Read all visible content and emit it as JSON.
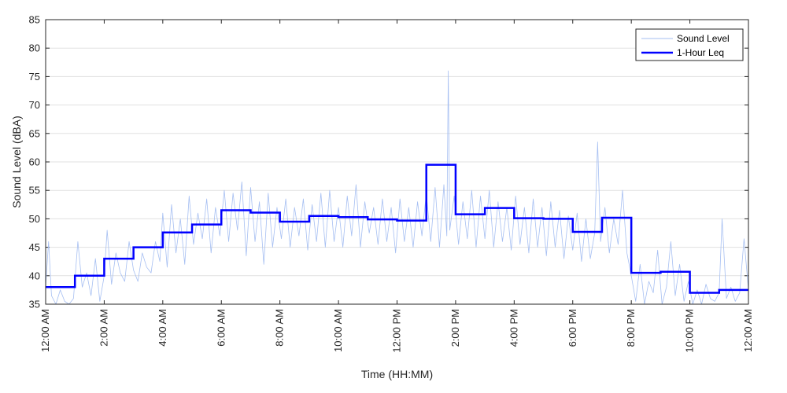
{
  "chart_data": {
    "type": "line",
    "xlabel": "Time (HH:MM)",
    "ylabel": "Sound Level (dBA)",
    "xlim": [
      0,
      24
    ],
    "ylim": [
      35,
      85
    ],
    "grid": "horizontal",
    "legend_position": "top-right",
    "y_ticks": [
      35,
      40,
      45,
      50,
      55,
      60,
      65,
      70,
      75,
      80,
      85
    ],
    "x_ticks": [
      {
        "hour": 0,
        "label": "12:00 AM"
      },
      {
        "hour": 2,
        "label": "2:00 AM"
      },
      {
        "hour": 4,
        "label": "4:00 AM"
      },
      {
        "hour": 6,
        "label": "6:00 AM"
      },
      {
        "hour": 8,
        "label": "8:00 AM"
      },
      {
        "hour": 10,
        "label": "10:00 AM"
      },
      {
        "hour": 12,
        "label": "12:00 PM"
      },
      {
        "hour": 14,
        "label": "2:00 PM"
      },
      {
        "hour": 16,
        "label": "4:00 PM"
      },
      {
        "hour": 18,
        "label": "6:00 PM"
      },
      {
        "hour": 20,
        "label": "8:00 PM"
      },
      {
        "hour": 22,
        "label": "10:00 PM"
      },
      {
        "hour": 24,
        "label": "12:00 AM"
      }
    ],
    "series": [
      {
        "name": "Sound Level",
        "color": "#a6bff2",
        "style": "thin-line",
        "points": [
          [
            0.0,
            38.0
          ],
          [
            0.1,
            46.0
          ],
          [
            0.2,
            36.5
          ],
          [
            0.35,
            35.0
          ],
          [
            0.5,
            37.5
          ],
          [
            0.65,
            35.5
          ],
          [
            0.8,
            35.0
          ],
          [
            0.95,
            36.0
          ],
          [
            1.1,
            46.0
          ],
          [
            1.25,
            38.0
          ],
          [
            1.4,
            40.5
          ],
          [
            1.55,
            36.5
          ],
          [
            1.7,
            43.0
          ],
          [
            1.85,
            35.5
          ],
          [
            2.0,
            40.0
          ],
          [
            2.1,
            48.0
          ],
          [
            2.25,
            38.5
          ],
          [
            2.4,
            44.0
          ],
          [
            2.55,
            40.5
          ],
          [
            2.7,
            39.0
          ],
          [
            2.85,
            46.0
          ],
          [
            3.0,
            41.0
          ],
          [
            3.15,
            39.0
          ],
          [
            3.3,
            44.0
          ],
          [
            3.45,
            41.5
          ],
          [
            3.6,
            40.5
          ],
          [
            3.75,
            46.0
          ],
          [
            3.9,
            42.5
          ],
          [
            4.0,
            51.0
          ],
          [
            4.15,
            41.5
          ],
          [
            4.3,
            52.5
          ],
          [
            4.45,
            44.0
          ],
          [
            4.6,
            50.0
          ],
          [
            4.75,
            42.0
          ],
          [
            4.9,
            54.0
          ],
          [
            5.05,
            45.5
          ],
          [
            5.2,
            51.0
          ],
          [
            5.35,
            46.5
          ],
          [
            5.5,
            53.5
          ],
          [
            5.65,
            44.0
          ],
          [
            5.8,
            52.0
          ],
          [
            5.95,
            47.0
          ],
          [
            6.1,
            55.0
          ],
          [
            6.25,
            46.0
          ],
          [
            6.4,
            54.5
          ],
          [
            6.55,
            48.0
          ],
          [
            6.7,
            56.5
          ],
          [
            6.85,
            43.5
          ],
          [
            7.0,
            55.5
          ],
          [
            7.15,
            46.0
          ],
          [
            7.3,
            53.0
          ],
          [
            7.45,
            42.0
          ],
          [
            7.6,
            54.5
          ],
          [
            7.75,
            45.0
          ],
          [
            7.9,
            52.0
          ],
          [
            8.05,
            46.5
          ],
          [
            8.2,
            53.5
          ],
          [
            8.35,
            45.0
          ],
          [
            8.5,
            52.0
          ],
          [
            8.65,
            47.0
          ],
          [
            8.8,
            53.5
          ],
          [
            8.95,
            44.5
          ],
          [
            9.1,
            52.5
          ],
          [
            9.25,
            46.0
          ],
          [
            9.4,
            54.5
          ],
          [
            9.55,
            45.0
          ],
          [
            9.7,
            55.0
          ],
          [
            9.85,
            46.0
          ],
          [
            10.0,
            52.0
          ],
          [
            10.15,
            45.0
          ],
          [
            10.3,
            54.0
          ],
          [
            10.45,
            47.0
          ],
          [
            10.6,
            56.0
          ],
          [
            10.75,
            45.0
          ],
          [
            10.9,
            53.0
          ],
          [
            11.05,
            47.5
          ],
          [
            11.2,
            52.0
          ],
          [
            11.35,
            45.5
          ],
          [
            11.5,
            53.5
          ],
          [
            11.65,
            46.0
          ],
          [
            11.8,
            52.0
          ],
          [
            11.95,
            44.0
          ],
          [
            12.1,
            53.5
          ],
          [
            12.25,
            46.0
          ],
          [
            12.4,
            52.0
          ],
          [
            12.55,
            45.0
          ],
          [
            12.7,
            53.0
          ],
          [
            12.85,
            47.0
          ],
          [
            13.0,
            54.5
          ],
          [
            13.15,
            46.0
          ],
          [
            13.3,
            55.5
          ],
          [
            13.45,
            45.0
          ],
          [
            13.6,
            56.0
          ],
          [
            13.7,
            47.0
          ],
          [
            13.75,
            76.0
          ],
          [
            13.8,
            48.0
          ],
          [
            13.95,
            54.0
          ],
          [
            14.1,
            45.5
          ],
          [
            14.25,
            53.0
          ],
          [
            14.4,
            46.5
          ],
          [
            14.55,
            55.0
          ],
          [
            14.7,
            45.0
          ],
          [
            14.85,
            54.0
          ],
          [
            15.0,
            46.5
          ],
          [
            15.15,
            55.0
          ],
          [
            15.3,
            45.0
          ],
          [
            15.45,
            53.0
          ],
          [
            15.6,
            46.0
          ],
          [
            15.75,
            52.0
          ],
          [
            15.9,
            44.5
          ],
          [
            16.05,
            54.0
          ],
          [
            16.2,
            45.5
          ],
          [
            16.35,
            52.0
          ],
          [
            16.5,
            44.0
          ],
          [
            16.65,
            53.5
          ],
          [
            16.8,
            45.0
          ],
          [
            16.95,
            52.0
          ],
          [
            17.1,
            43.5
          ],
          [
            17.25,
            53.0
          ],
          [
            17.4,
            45.0
          ],
          [
            17.55,
            51.5
          ],
          [
            17.7,
            43.0
          ],
          [
            17.85,
            50.5
          ],
          [
            18.0,
            44.5
          ],
          [
            18.15,
            51.0
          ],
          [
            18.3,
            42.5
          ],
          [
            18.45,
            50.0
          ],
          [
            18.6,
            43.0
          ],
          [
            18.75,
            47.5
          ],
          [
            18.85,
            63.5
          ],
          [
            18.95,
            46.0
          ],
          [
            19.1,
            52.0
          ],
          [
            19.25,
            44.0
          ],
          [
            19.4,
            50.0
          ],
          [
            19.55,
            45.5
          ],
          [
            19.7,
            55.0
          ],
          [
            19.85,
            44.0
          ],
          [
            20.0,
            40.0
          ],
          [
            20.15,
            35.5
          ],
          [
            20.3,
            42.0
          ],
          [
            20.45,
            35.0
          ],
          [
            20.6,
            39.0
          ],
          [
            20.75,
            37.0
          ],
          [
            20.9,
            44.5
          ],
          [
            21.05,
            35.0
          ],
          [
            21.2,
            38.0
          ],
          [
            21.35,
            46.0
          ],
          [
            21.5,
            36.5
          ],
          [
            21.65,
            42.0
          ],
          [
            21.8,
            35.5
          ],
          [
            21.95,
            39.0
          ],
          [
            22.1,
            35.0
          ],
          [
            22.25,
            37.5
          ],
          [
            22.4,
            35.0
          ],
          [
            22.55,
            38.5
          ],
          [
            22.7,
            36.0
          ],
          [
            22.85,
            35.5
          ],
          [
            23.0,
            37.0
          ],
          [
            23.1,
            50.0
          ],
          [
            23.25,
            36.0
          ],
          [
            23.4,
            38.0
          ],
          [
            23.55,
            35.5
          ],
          [
            23.7,
            37.0
          ],
          [
            23.85,
            46.5
          ],
          [
            24.0,
            37.5
          ]
        ]
      },
      {
        "name": "1-Hour Leq",
        "color": "#0000ff",
        "style": "thick-step",
        "hourly_values": [
          38.0,
          40.0,
          43.0,
          45.0,
          47.6,
          49.0,
          51.5,
          51.1,
          49.5,
          50.5,
          50.3,
          49.9,
          49.7,
          59.5,
          50.8,
          51.9,
          50.1,
          50.0,
          47.7,
          50.2,
          40.5,
          40.7,
          37.0,
          37.5
        ]
      }
    ]
  }
}
